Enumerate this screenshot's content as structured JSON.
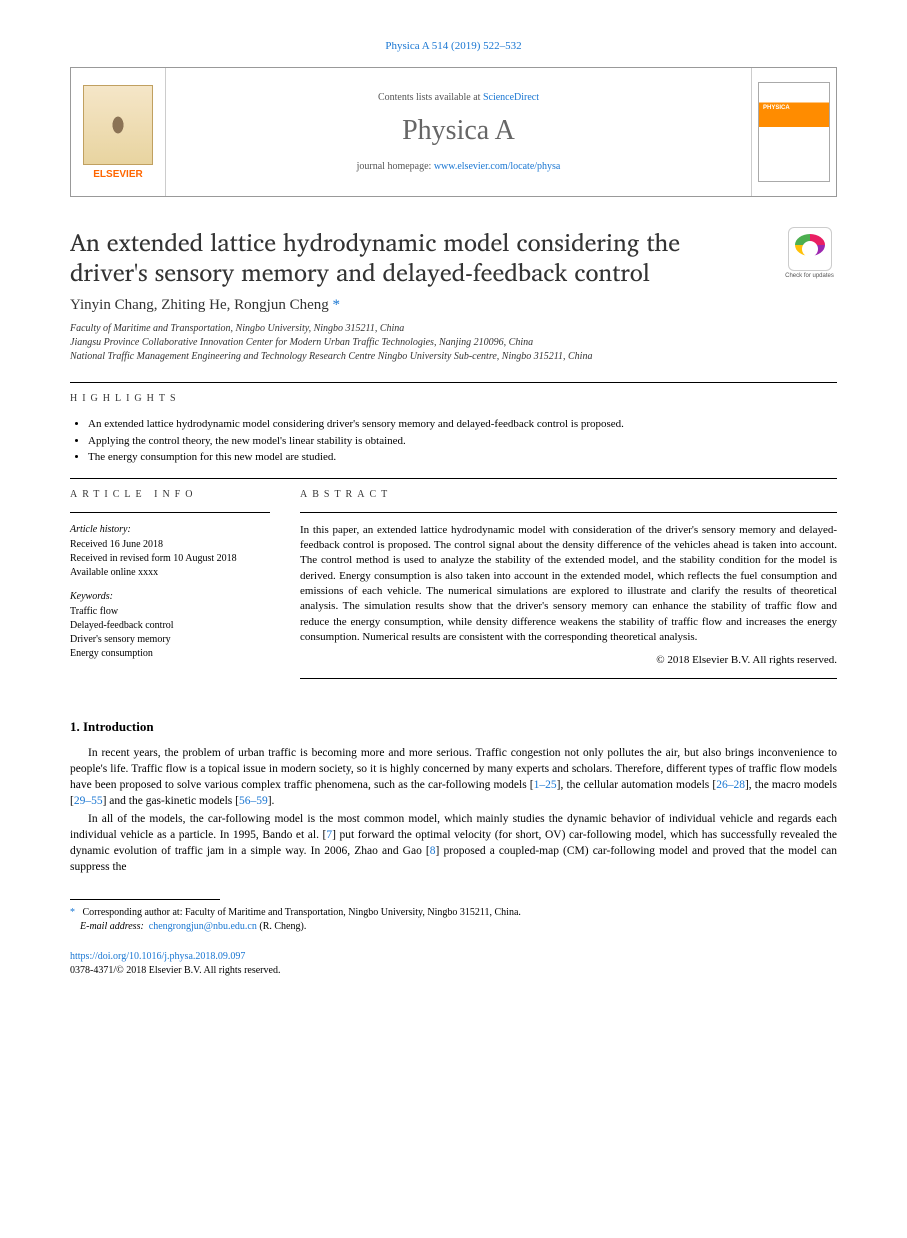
{
  "journal_ref": "Physica A 514 (2019) 522–532",
  "header": {
    "elsevier": "ELSEVIER",
    "contents_prefix": "Contents lists available at ",
    "contents_link": "ScienceDirect",
    "journal_name": "Physica A",
    "homepage_prefix": "journal homepage: ",
    "homepage_link": "www.elsevier.com/locate/physa"
  },
  "check_updates": "Check for updates",
  "title": "An extended lattice hydrodynamic model considering the driver's sensory memory and delayed-feedback control",
  "authors": "Yinyin Chang, Zhiting He, Rongjun Cheng",
  "corresp_mark": "*",
  "affiliations": [
    "Faculty of Maritime and Transportation, Ningbo University, Ningbo  315211, China",
    "Jiangsu Province Collaborative Innovation Center for Modern Urban Traffic Technologies, Nanjing  210096, China",
    "National Traffic Management Engineering and Technology Research Centre Ningbo University Sub-centre, Ningbo  315211, China"
  ],
  "highlights_label": "highlights",
  "highlights": [
    "An extended lattice hydrodynamic model considering driver's sensory memory and delayed-feedback control is proposed.",
    "Applying the control theory, the new model's linear stability is obtained.",
    "The energy consumption for this new model are studied."
  ],
  "article_info_label": "article info",
  "abstract_label": "abstract",
  "history": {
    "hdr": "Article history:",
    "received": "Received 16 June 2018",
    "revised": "Received in revised form 10 August 2018",
    "available": "Available online  xxxx"
  },
  "keywords": {
    "hdr": "Keywords:",
    "items": [
      "Traffic flow",
      "Delayed-feedback control",
      "Driver's sensory memory",
      "Energy consumption"
    ]
  },
  "abstract": "In this paper, an extended lattice hydrodynamic model with consideration of the driver's sensory memory and delayed-feedback control is proposed. The control signal about the density difference of the vehicles ahead is taken into account. The control method is used to analyze the stability of the extended model, and the stability condition for the model is derived. Energy consumption is also taken into account in the extended model, which reflects the fuel consumption and emissions of each vehicle. The numerical simulations are explored to illustrate and clarify the results of theoretical analysis. The simulation results show that the driver's sensory memory can enhance the stability of traffic flow and reduce the energy consumption, while density difference weakens the stability of traffic flow and increases the energy consumption. Numerical results are consistent with the corresponding theoretical analysis.",
  "copyright": "© 2018 Elsevier B.V. All rights reserved.",
  "intro_heading": "1.  Introduction",
  "intro_p1_a": "In recent years, the problem of urban traffic is becoming more and more serious. Traffic congestion not only pollutes the air, but also brings inconvenience to people's life. Traffic flow is a topical issue in modern society, so it is highly concerned by many experts and scholars. Therefore, different types of traffic flow models have been proposed to solve various complex traffic phenomena, such as the car-following models [",
  "intro_p1_c1": "1–25",
  "intro_p1_b": "], the cellular automation models [",
  "intro_p1_c2": "26–28",
  "intro_p1_c": "], the macro models [",
  "intro_p1_c3": "29–55",
  "intro_p1_d": "] and the gas-kinetic models [",
  "intro_p1_c4": "56–59",
  "intro_p1_e": "].",
  "intro_p2_a": "In all of the models, the car-following model is the most common model, which mainly studies the dynamic behavior of individual vehicle and regards each individual vehicle as a particle. In 1995, Bando et al. [",
  "intro_p2_c1": "7",
  "intro_p2_b": "] put forward the optimal velocity (for short, OV) car-following model, which has successfully revealed the dynamic evolution of traffic jam in a simple way. In 2006, Zhao and Gao [",
  "intro_p2_c2": "8",
  "intro_p2_c": "] proposed a coupled-map (CM) car-following model and proved that the model can suppress the",
  "footnote": {
    "star": "*",
    "corresp": "Corresponding author at: Faculty of Maritime and Transportation, Ningbo University, Ningbo  315211, China.",
    "email_label": "E-mail address:",
    "email": "chengrongjun@nbu.edu.cn",
    "email_suffix": "(R. Cheng)."
  },
  "footer": {
    "doi": "https://doi.org/10.1016/j.physa.2018.09.097",
    "issn": "0378-4371/© 2018 Elsevier B.V. All rights reserved."
  }
}
